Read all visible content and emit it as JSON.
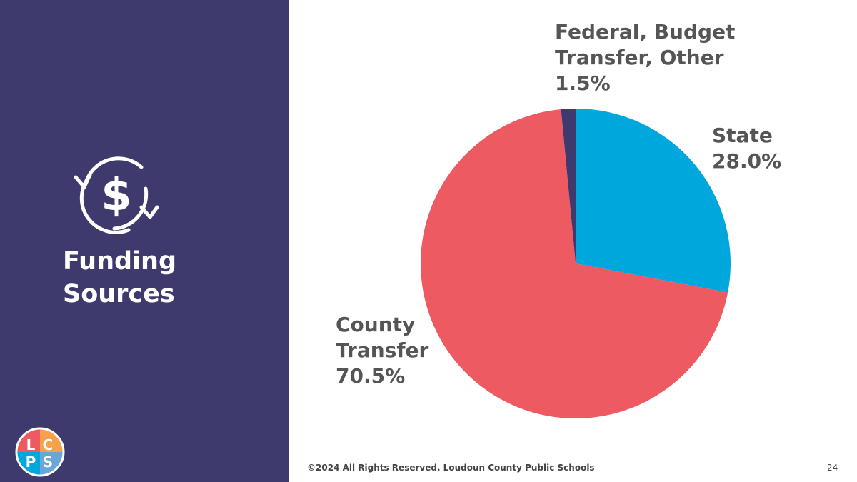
{
  "sidebar": {
    "title_line1": "Funding",
    "title_line2": "Sources",
    "icon": "dollar-cycle-icon",
    "logo_text": "LCPS"
  },
  "chart_data": {
    "type": "pie",
    "categories": [
      "State",
      "County Transfer",
      "Federal, Budget Transfer, Other"
    ],
    "values": [
      28.0,
      70.5,
      1.5
    ],
    "value_labels": [
      "28.0%",
      "70.5%",
      "1.5%"
    ],
    "colors": [
      "#00a7dc",
      "#ee5a62",
      "#3f3a6d"
    ],
    "start_angle_deg": 0,
    "direction": "clockwise",
    "unit": "%"
  },
  "labels": {
    "federal": "Federal, Budget\nTransfer, Other",
    "federal_pct": "1.5%",
    "state": "State",
    "state_pct": "28.0%",
    "county": "County\nTransfer",
    "county_pct": "70.5%"
  },
  "footer": {
    "copyright": "©2024 All Rights Reserved. Loudoun County Public Schools",
    "page_number": "24"
  }
}
